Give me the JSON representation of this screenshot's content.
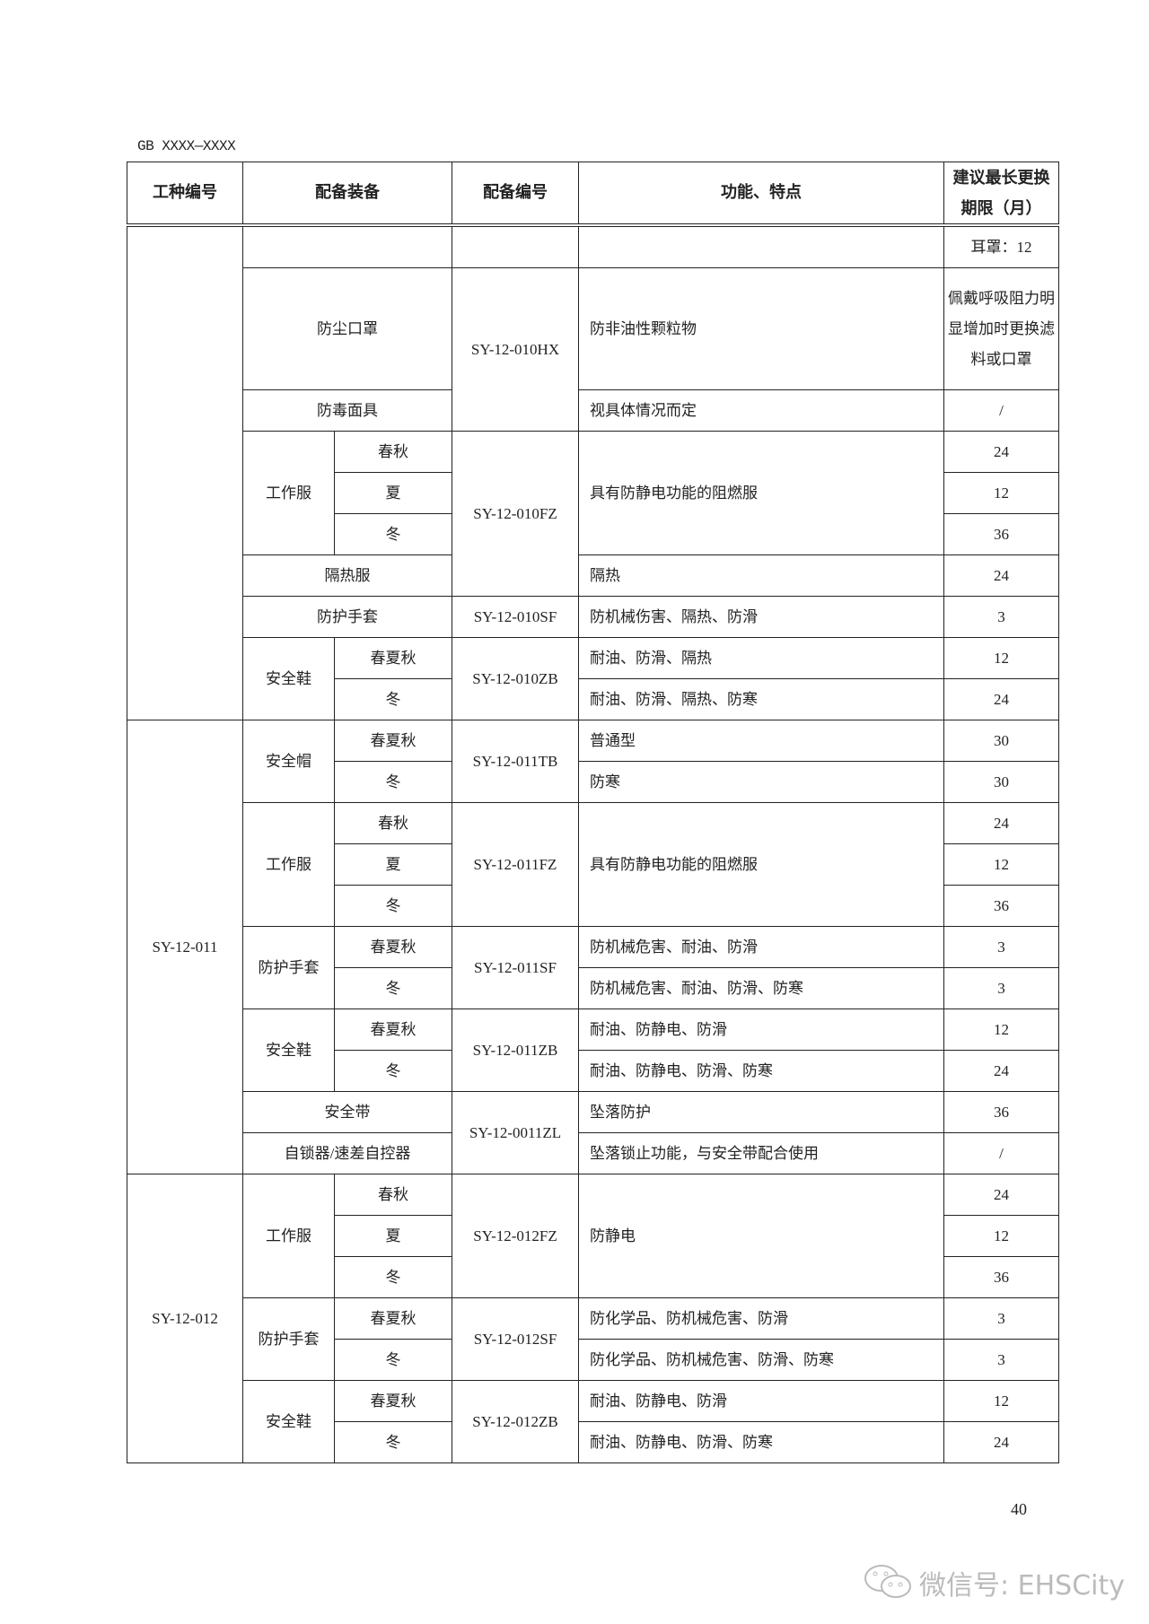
{
  "document": {
    "code": "GB XXXX—XXXX",
    "page_number": "40"
  },
  "watermark": {
    "text": "微信号: EHSCity",
    "icon": "wechat-icon"
  },
  "table": {
    "headers": [
      "工种编号",
      "配备装备",
      "配备编号",
      "功能、特点",
      "建议最长更换期限（月）"
    ],
    "rows": [
      [
        {
          "t": "",
          "rs": 10
        },
        {
          "t": "",
          "cs": 2
        },
        {
          "t": ""
        },
        {
          "t": ""
        },
        {
          "t": "耳罩：12"
        }
      ],
      [
        {
          "t": "防尘口罩",
          "cs": 2
        },
        {
          "t": "SY-12-010HX",
          "rs": 2
        },
        {
          "t": "防非油性颗粒物",
          "left": true
        },
        {
          "t": "佩戴呼吸阻力明显增加时更换滤料或口罩",
          "wrap": true
        }
      ],
      [
        {
          "t": "防毒面具",
          "cs": 2
        },
        {
          "t": "视具体情况而定",
          "left": true
        },
        {
          "t": "/"
        }
      ],
      [
        {
          "t": "工作服",
          "rs": 3
        },
        {
          "t": "春秋"
        },
        {
          "t": "SY-12-010FZ",
          "rs": 4
        },
        {
          "t": "具有防静电功能的阻燃服",
          "rs": 3,
          "left": true
        },
        {
          "t": "24"
        }
      ],
      [
        {
          "t": "夏"
        },
        {
          "t": "12"
        }
      ],
      [
        {
          "t": "冬"
        },
        {
          "t": "36"
        }
      ],
      [
        {
          "t": "隔热服",
          "cs": 2
        },
        {
          "t": "隔热",
          "left": true
        },
        {
          "t": "24"
        }
      ],
      [
        {
          "t": "防护手套",
          "cs": 2
        },
        {
          "t": "SY-12-010SF"
        },
        {
          "t": "防机械伤害、隔热、防滑",
          "left": true
        },
        {
          "t": "3"
        }
      ],
      [
        {
          "t": "安全鞋",
          "rs": 2
        },
        {
          "t": "春夏秋"
        },
        {
          "t": "SY-12-010ZB",
          "rs": 2
        },
        {
          "t": "耐油、防滑、隔热",
          "left": true
        },
        {
          "t": "12"
        }
      ],
      [
        {
          "t": "冬"
        },
        {
          "t": "耐油、防滑、隔热、防寒",
          "left": true
        },
        {
          "t": "24"
        }
      ],
      [
        {
          "t": "SY-12-011",
          "rs": 11
        },
        {
          "t": "安全帽",
          "rs": 2
        },
        {
          "t": "春夏秋"
        },
        {
          "t": "SY-12-011TB",
          "rs": 2
        },
        {
          "t": "普通型",
          "left": true
        },
        {
          "t": "30"
        }
      ],
      [
        {
          "t": "冬"
        },
        {
          "t": "防寒",
          "left": true
        },
        {
          "t": "30"
        }
      ],
      [
        {
          "t": "工作服",
          "rs": 3
        },
        {
          "t": "春秋"
        },
        {
          "t": "SY-12-011FZ",
          "rs": 3
        },
        {
          "t": "具有防静电功能的阻燃服",
          "rs": 3,
          "left": true
        },
        {
          "t": "24"
        }
      ],
      [
        {
          "t": "夏"
        },
        {
          "t": "12"
        }
      ],
      [
        {
          "t": "冬"
        },
        {
          "t": "36"
        }
      ],
      [
        {
          "t": "防护手套",
          "rs": 2
        },
        {
          "t": "春夏秋"
        },
        {
          "t": "SY-12-011SF",
          "rs": 2
        },
        {
          "t": "防机械危害、耐油、防滑",
          "left": true
        },
        {
          "t": "3"
        }
      ],
      [
        {
          "t": "冬"
        },
        {
          "t": "防机械危害、耐油、防滑、防寒",
          "left": true
        },
        {
          "t": "3"
        }
      ],
      [
        {
          "t": "安全鞋",
          "rs": 2
        },
        {
          "t": "春夏秋"
        },
        {
          "t": "SY-12-011ZB",
          "rs": 2
        },
        {
          "t": "耐油、防静电、防滑",
          "left": true
        },
        {
          "t": "12"
        }
      ],
      [
        {
          "t": "冬"
        },
        {
          "t": "耐油、防静电、防滑、防寒",
          "left": true
        },
        {
          "t": "24"
        }
      ],
      [
        {
          "t": "安全带",
          "cs": 2
        },
        {
          "t": "SY-12-0011ZL",
          "rs": 2
        },
        {
          "t": "坠落防护",
          "left": true
        },
        {
          "t": "36"
        }
      ],
      [
        {
          "t": "自锁器/速差自控器",
          "cs": 2
        },
        {
          "t": "坠落锁止功能，与安全带配合使用",
          "left": true
        },
        {
          "t": "/"
        }
      ],
      [
        {
          "t": "SY-12-012",
          "rs": 7
        },
        {
          "t": "工作服",
          "rs": 3
        },
        {
          "t": "春秋"
        },
        {
          "t": "SY-12-012FZ",
          "rs": 3
        },
        {
          "t": "防静电",
          "rs": 3,
          "left": true
        },
        {
          "t": "24"
        }
      ],
      [
        {
          "t": "夏"
        },
        {
          "t": "12"
        }
      ],
      [
        {
          "t": "冬"
        },
        {
          "t": "36"
        }
      ],
      [
        {
          "t": "防护手套",
          "rs": 2
        },
        {
          "t": "春夏秋"
        },
        {
          "t": "SY-12-012SF",
          "rs": 2
        },
        {
          "t": "防化学品、防机械危害、防滑",
          "left": true
        },
        {
          "t": "3"
        }
      ],
      [
        {
          "t": "冬"
        },
        {
          "t": "防化学品、防机械危害、防滑、防寒",
          "left": true
        },
        {
          "t": "3"
        }
      ],
      [
        {
          "t": "安全鞋",
          "rs": 2
        },
        {
          "t": "春夏秋"
        },
        {
          "t": "SY-12-012ZB",
          "rs": 2
        },
        {
          "t": "耐油、防静电、防滑",
          "left": true
        },
        {
          "t": "12"
        }
      ],
      [
        {
          "t": "冬"
        },
        {
          "t": "耐油、防静电、防滑、防寒",
          "left": true
        },
        {
          "t": "24"
        }
      ]
    ]
  }
}
